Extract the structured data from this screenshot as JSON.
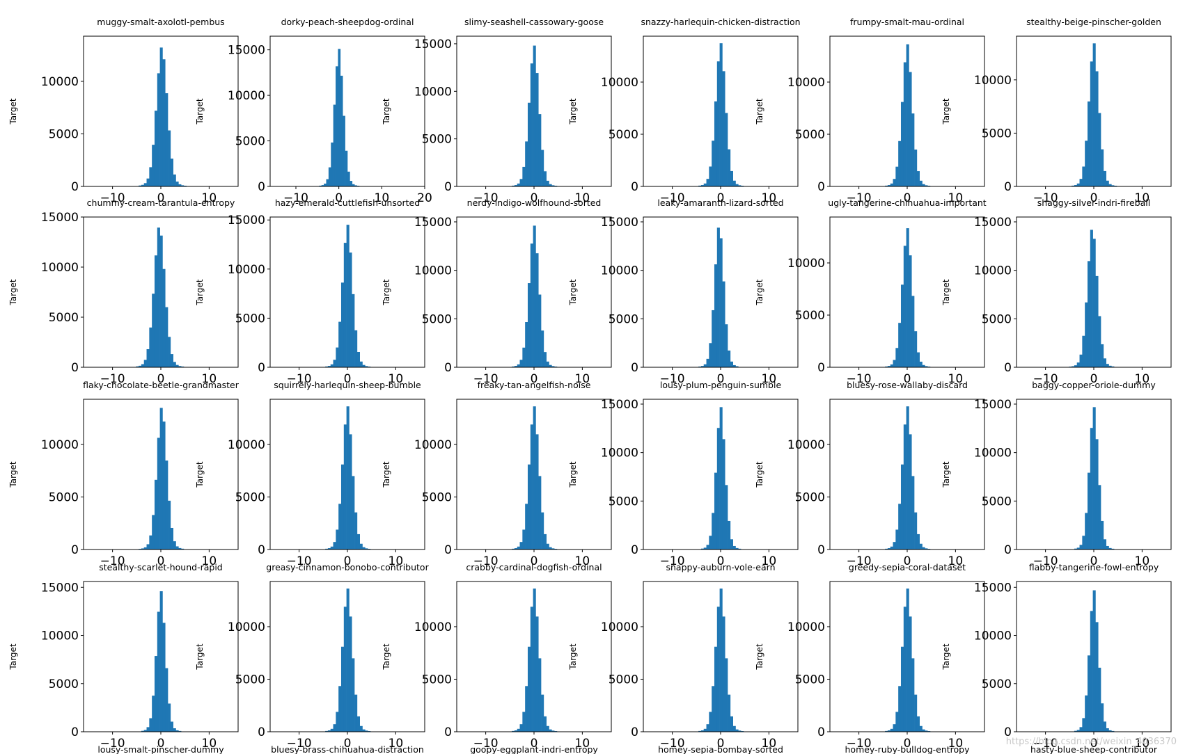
{
  "chart_data": {
    "type": "histogram-grid",
    "rows": 4,
    "cols": 6,
    "ylabel": "Target",
    "bar_color": "#1f77b4",
    "panels": [
      {
        "title": "muggy-smalt-axolotl-pembus",
        "xticks": [
          "−10",
          "0",
          "10"
        ],
        "xrange": [
          -16,
          16
        ],
        "yticks": [
          "0",
          "5000",
          "10000"
        ],
        "ymax": 14300,
        "peak": 13500,
        "center": 0.2,
        "spread": 1.2
      },
      {
        "title": "dorky-peach-sheepdog-ordinal",
        "xticks": [
          "−10",
          "0",
          "10",
          "20"
        ],
        "xrange": [
          -16,
          20
        ],
        "yticks": [
          "0",
          "5000",
          "10000",
          "15000"
        ],
        "ymax": 16500,
        "peak": 15300,
        "center": 0,
        "spread": 1.1
      },
      {
        "title": "slimy-seashell-cassowary-goose",
        "xticks": [
          "−10",
          "0",
          "10"
        ],
        "xrange": [
          -16,
          16
        ],
        "yticks": [
          "0",
          "5000",
          "10000",
          "15000"
        ],
        "ymax": 15800,
        "peak": 15000,
        "center": 0,
        "spread": 1.1
      },
      {
        "title": "snazzy-harlequin-chicken-distraction",
        "xticks": [
          "−10",
          "0",
          "10"
        ],
        "xrange": [
          -16,
          16
        ],
        "yticks": [
          "0",
          "5000",
          "10000"
        ],
        "ymax": 14400,
        "peak": 13900,
        "center": 0,
        "spread": 1.1
      },
      {
        "title": "frumpy-smalt-mau-ordinal",
        "xticks": [
          "−10",
          "0",
          "10"
        ],
        "xrange": [
          -16,
          16
        ],
        "yticks": [
          "0",
          "5000",
          "10000"
        ],
        "ymax": 14400,
        "peak": 13800,
        "center": 0,
        "spread": 1.1
      },
      {
        "title": "stealthy-beige-pinscher-golden",
        "xticks": [
          "−10",
          "0",
          "10"
        ],
        "xrange": [
          -16,
          16
        ],
        "yticks": [
          "0",
          "5000",
          "10000"
        ],
        "ymax": 14100,
        "peak": 13600,
        "center": 0,
        "spread": 1.1
      },
      {
        "title": "chummy-cream-tarantula-entropy",
        "xticks": [
          "−10",
          "0",
          "10"
        ],
        "xrange": [
          -16,
          16
        ],
        "yticks": [
          "0",
          "5000",
          "10000",
          "15000"
        ],
        "ymax": 15000,
        "peak": 14400,
        "center": -0.3,
        "spread": 1.2
      },
      {
        "title": "hazy-emerald-cuttlefish-unsorted",
        "xticks": [
          "−10",
          "0",
          "10"
        ],
        "xrange": [
          -16,
          16
        ],
        "yticks": [
          "0",
          "5000",
          "10000",
          "15000"
        ],
        "ymax": 15300,
        "peak": 14700,
        "center": 0,
        "spread": 1.1
      },
      {
        "title": "nerdy-indigo-wolfhound-sorted",
        "xticks": [
          "−10",
          "0",
          "10"
        ],
        "xrange": [
          -16,
          16
        ],
        "yticks": [
          "0",
          "5000",
          "10000",
          "15000"
        ],
        "ymax": 15500,
        "peak": 14800,
        "center": 0,
        "spread": 1.1
      },
      {
        "title": "leaky-amaranth-lizard-sorted",
        "xticks": [
          "−10",
          "0",
          "10"
        ],
        "xrange": [
          -16,
          16
        ],
        "yticks": [
          "0",
          "5000",
          "10000",
          "15000"
        ],
        "ymax": 15500,
        "peak": 15000,
        "center": -0.3,
        "spread": 1.0
      },
      {
        "title": "ugly-tangerine-chihuahua-important",
        "xticks": [
          "−10",
          "0",
          "10"
        ],
        "xrange": [
          -16,
          16
        ],
        "yticks": [
          "0",
          "5000",
          "10000"
        ],
        "ymax": 14400,
        "peak": 13500,
        "center": 0,
        "spread": 1.1
      },
      {
        "title": "shaggy-silver-indri-fireball",
        "xticks": [
          "−10",
          "0",
          "10"
        ],
        "xrange": [
          -16,
          16
        ],
        "yticks": [
          "0",
          "5000",
          "10000",
          "15000"
        ],
        "ymax": 15500,
        "peak": 14700,
        "center": -0.3,
        "spread": 1.1
      },
      {
        "title": "flaky-chocolate-beetle-grandmaster",
        "xticks": [
          "−10",
          "0",
          "10"
        ],
        "xrange": [
          -16,
          16
        ],
        "yticks": [
          "0",
          "5000",
          "10000"
        ],
        "ymax": 14300,
        "peak": 13800,
        "center": 0.2,
        "spread": 1.1
      },
      {
        "title": "squirrely-harlequin-sheep-bumble",
        "xticks": [
          "−10",
          "0",
          "10"
        ],
        "xrange": [
          -16,
          16
        ],
        "yticks": [
          "0",
          "5000",
          "10000"
        ],
        "ymax": 14300,
        "peak": 13800,
        "center": 0,
        "spread": 1.1
      },
      {
        "title": "freaky-tan-angelfish-noise",
        "xticks": [
          "−10",
          "0",
          "10"
        ],
        "xrange": [
          -16,
          16
        ],
        "yticks": [
          "0",
          "5000",
          "10000"
        ],
        "ymax": 14300,
        "peak": 13800,
        "center": 0,
        "spread": 1.1
      },
      {
        "title": "lousy-plum-penguin-sumble",
        "xticks": [
          "−10",
          "0",
          "10"
        ],
        "xrange": [
          -16,
          16
        ],
        "yticks": [
          "0",
          "5000",
          "10000",
          "15000"
        ],
        "ymax": 15500,
        "peak": 14900,
        "center": 0,
        "spread": 1.0
      },
      {
        "title": "bluesy-rose-wallaby-discard",
        "xticks": [
          "−10",
          "0",
          "10"
        ],
        "xrange": [
          -16,
          16
        ],
        "yticks": [
          "0",
          "5000",
          "10000"
        ],
        "ymax": 14300,
        "peak": 13800,
        "center": 0,
        "spread": 1.1
      },
      {
        "title": "baggy-copper-oriole-dummy",
        "xticks": [
          "−10",
          "0",
          "10"
        ],
        "xrange": [
          -16,
          16
        ],
        "yticks": [
          "0",
          "5000",
          "10000",
          "15000"
        ],
        "ymax": 15500,
        "peak": 14900,
        "center": 0,
        "spread": 1.0
      },
      {
        "title": "stealthy-scarlet-hound-rapid",
        "xticks": [
          "−10",
          "0",
          "10"
        ],
        "xrange": [
          -16,
          16
        ],
        "yticks": [
          "0",
          "5000",
          "10000",
          "15000"
        ],
        "ymax": 15600,
        "peak": 14800,
        "center": 0,
        "spread": 1.0
      },
      {
        "title": "greasy-cinnamon-bonobo-contributor",
        "xticks": [
          "−10",
          "0",
          "10"
        ],
        "xrange": [
          -16,
          16
        ],
        "yticks": [
          "0",
          "5000",
          "10000"
        ],
        "ymax": 14300,
        "peak": 13800,
        "center": 0,
        "spread": 1.1
      },
      {
        "title": "crabby-cardinal-dogfish-ordinal",
        "xticks": [
          "−10",
          "0",
          "10"
        ],
        "xrange": [
          -16,
          16
        ],
        "yticks": [
          "0",
          "5000",
          "10000"
        ],
        "ymax": 14300,
        "peak": 13800,
        "center": 0,
        "spread": 1.1
      },
      {
        "title": "snappy-auburn-vole-earn",
        "xticks": [
          "−10",
          "0",
          "10"
        ],
        "xrange": [
          -16,
          16
        ],
        "yticks": [
          "0",
          "5000",
          "10000"
        ],
        "ymax": 14300,
        "peak": 13800,
        "center": 0,
        "spread": 1.1
      },
      {
        "title": "greedy-sepia-coral-dataset",
        "xticks": [
          "−10",
          "0",
          "10"
        ],
        "xrange": [
          -16,
          16
        ],
        "yticks": [
          "0",
          "5000",
          "10000"
        ],
        "ymax": 14300,
        "peak": 13800,
        "center": 0,
        "spread": 1.1
      },
      {
        "title": "flabby-tangerine-fowl-entropy",
        "xticks": [
          "−10",
          "0",
          "10"
        ],
        "xrange": [
          -16,
          16
        ],
        "yticks": [
          "0",
          "5000",
          "10000",
          "15000"
        ],
        "ymax": 15600,
        "peak": 14900,
        "center": 0,
        "spread": 1.0
      }
    ],
    "bottom_titles": [
      "lousy-smalt-pinscher-dummy",
      "bluesy-brass-chihuahua-distraction",
      "goopy-eggplant-indri-entropy",
      "homey-sepia-bombay-sorted",
      "homey-ruby-bulldog-entropy",
      "hasty-blue-sheep-contributor"
    ]
  },
  "watermark": "https://blog.csdn.net/weixin_4036370"
}
